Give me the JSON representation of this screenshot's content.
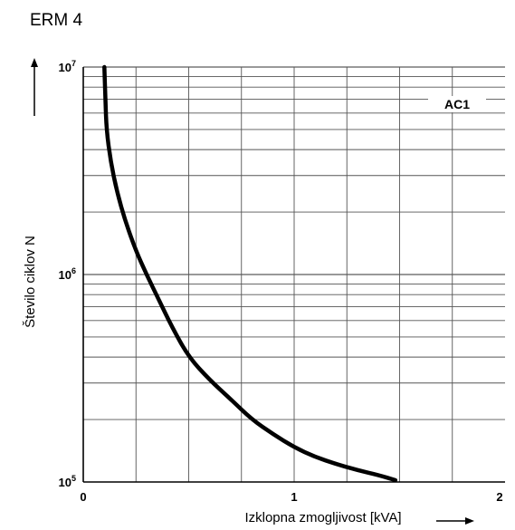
{
  "chart_data": {
    "type": "line",
    "title": "ERM 4",
    "xlabel": "Izklopna zmogljivost [kVA]",
    "ylabel": "Število ciklov N",
    "annotation": "AC1",
    "x_scale": "linear",
    "y_scale": "log",
    "xlim": [
      0,
      2
    ],
    "ylim": [
      100000,
      10000000
    ],
    "x_ticks": [
      "0",
      "1",
      "2"
    ],
    "x_tick_values": [
      0,
      1,
      2
    ],
    "y_ticks": [
      {
        "base": "10",
        "exp": "5",
        "value": 100000
      },
      {
        "base": "10",
        "exp": "6",
        "value": 1000000
      },
      {
        "base": "10",
        "exp": "7",
        "value": 10000000
      }
    ],
    "grid": true,
    "series": [
      {
        "x": [
          0.1,
          0.105,
          0.11,
          0.13,
          0.16,
          0.2,
          0.25,
          0.3,
          0.36,
          0.42,
          0.5,
          0.6,
          0.7,
          0.8,
          0.9,
          1.0,
          1.1,
          1.2,
          1.3,
          1.4,
          1.48
        ],
        "y": [
          10000000,
          7000000,
          5000000,
          3500000,
          2500000,
          1800000,
          1300000,
          1000000,
          750000,
          560000,
          400000,
          310000,
          250000,
          200000,
          170000,
          147000,
          132000,
          122000,
          114000,
          108000,
          102000
        ]
      }
    ]
  }
}
